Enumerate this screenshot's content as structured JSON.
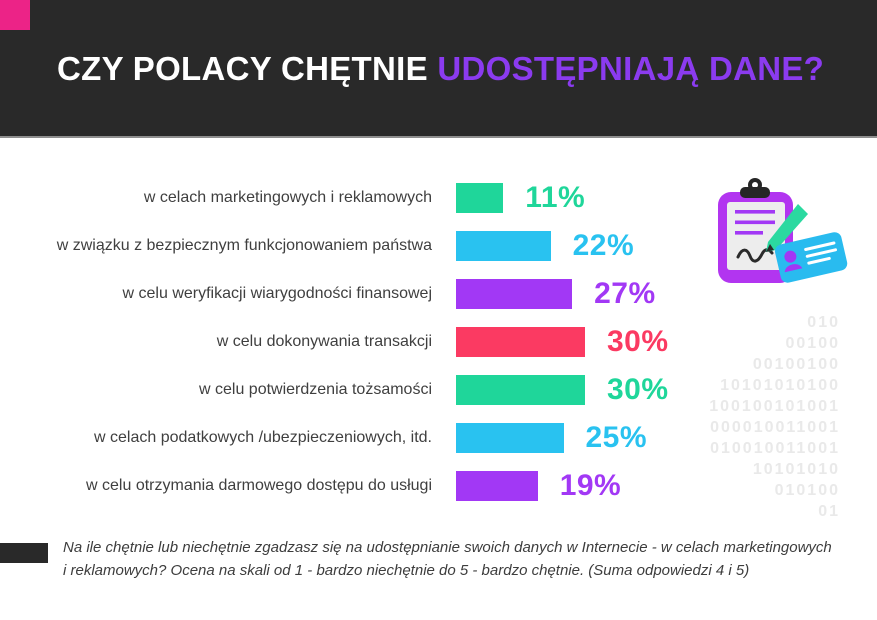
{
  "header": {
    "title": {
      "prefix": "CZY POLACY CHĘTNIE ",
      "highlight": "UDOSTĘPNIAJĄ DANE?"
    },
    "colors": {
      "background": "#292929",
      "prefix_text": "#FFFFFF",
      "highlight_text": "#8B3BEF",
      "accent_square": "#EC2387",
      "divider": "#8E8E8E"
    }
  },
  "chart_data": {
    "type": "bar",
    "orientation": "horizontal",
    "title": "CZY POLACY CHĘTNIE UDOSTĘPNIAJĄ DANE?",
    "unit": "%",
    "xlim": [
      0,
      100
    ],
    "grid": false,
    "categories": [
      "w celach marketingowych i reklamowych",
      "w związku z bezpiecznym funkcjonowaniem państwa",
      "w celu weryfikacji wiarygodności finansowej",
      "w celu dokonywania transakcji",
      "w celu potwierdzenia tożsamości",
      "w celach podatkowych /ubezpieczeniowych, itd.",
      "w celu otrzymania darmowego dostępu do usługi"
    ],
    "values": [
      11,
      22,
      27,
      30,
      30,
      25,
      19
    ],
    "value_labels": [
      "11%",
      "22%",
      "27%",
      "30%",
      "30%",
      "25%",
      "19%"
    ],
    "bar_colors": [
      "#1FD69A",
      "#29C2F0",
      "#A238F5",
      "#FB3A62",
      "#1FD69A",
      "#29C2F0",
      "#A238F5"
    ]
  },
  "illustration": {
    "name": "clipboard-pen-id-card",
    "colors": {
      "clipboard": "#B235F0",
      "paper": "#EDEDED",
      "clip": "#262626",
      "text_lines": "#A238F5",
      "pen": "#2BD9A0",
      "card": "#29BBEF",
      "card_person": "#A238F5",
      "signature": "#2B2B2B"
    }
  },
  "binary_watermark": {
    "color": "#E9E9E9",
    "lines": [
      "010",
      "00100",
      "00100100",
      "10101010100",
      "100100101001",
      "000010011001",
      "010010011001",
      "10101010",
      "010100",
      "01"
    ]
  },
  "footnote": {
    "accent_color": "#292929",
    "line1": "Na ile chętnie lub niechętnie zgadzasz się na udostępnianie swoich danych w Internecie - w celach marketingowych",
    "line2": "i reklamowych? Ocena na skali od 1 - bardzo niechętnie do 5 - bardzo chętnie. (Suma odpowiedzi 4 i 5)"
  }
}
